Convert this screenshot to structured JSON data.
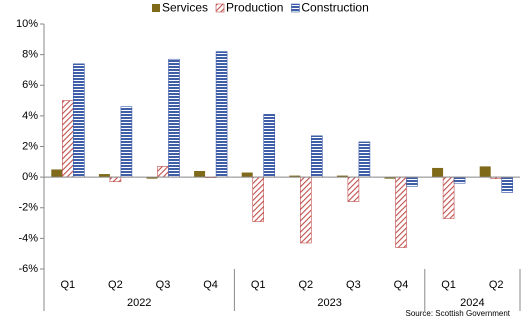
{
  "chart_data": {
    "type": "bar",
    "categories": [
      "Q1",
      "Q2",
      "Q3",
      "Q4",
      "Q1",
      "Q2",
      "Q3",
      "Q4",
      "Q1",
      "Q2"
    ],
    "category_years": [
      "2022",
      "2022",
      "2022",
      "2022",
      "2023",
      "2023",
      "2023",
      "2023",
      "2024",
      "2024"
    ],
    "series": [
      {
        "name": "Services",
        "color": "#7f6a1a",
        "hatch": "solid",
        "values": [
          0.5,
          0.2,
          -0.1,
          0.4,
          0.3,
          0.1,
          0.1,
          -0.1,
          0.6,
          0.7
        ]
      },
      {
        "name": "Production",
        "color": "#c0504d",
        "hatch": "diagonal",
        "values": [
          5.0,
          -0.3,
          0.7,
          0.0,
          -2.9,
          -4.3,
          -1.6,
          -4.6,
          -2.7,
          -0.1
        ]
      },
      {
        "name": "Construction",
        "color": "#3f5ea8",
        "hatch": "horizontal",
        "values": [
          7.4,
          4.6,
          7.7,
          8.2,
          4.1,
          2.7,
          2.3,
          -0.6,
          -0.4,
          -1.0
        ]
      }
    ],
    "ylim": [
      -6,
      10
    ],
    "yticks": [
      {
        "value": -6,
        "label": "-6%"
      },
      {
        "value": -4,
        "label": "-4%"
      },
      {
        "value": -2,
        "label": "-2%"
      },
      {
        "value": 0,
        "label": "0%"
      },
      {
        "value": 2,
        "label": "2%"
      },
      {
        "value": 4,
        "label": "4%"
      },
      {
        "value": 6,
        "label": "6%"
      },
      {
        "value": 8,
        "label": "8%"
      },
      {
        "value": 10,
        "label": "10%"
      }
    ],
    "source": "Source: Scottish Government"
  }
}
